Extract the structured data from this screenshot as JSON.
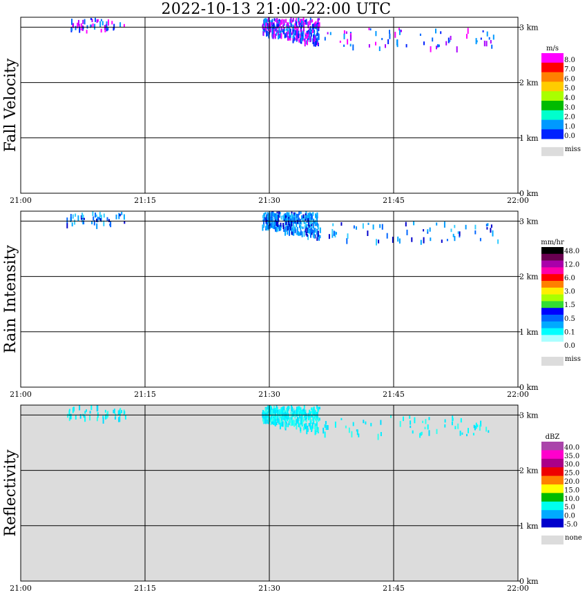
{
  "title": "2022-10-13  21:00-22:00 UTC",
  "x_ticks": [
    "21:00",
    "21:15",
    "21:30",
    "21:45",
    "22:00"
  ],
  "y_ticks": [
    "3 km",
    "2 km",
    "1 km",
    "0 km"
  ],
  "chart_data": [
    {
      "type": "heatmap",
      "ylabel": "Fall Velocity",
      "unit": "m/s",
      "background": "#ffffff",
      "colorbar": [
        {
          "color": "#ff00ff",
          "label": "8.0"
        },
        {
          "color": "#ff0000",
          "label": "7.0"
        },
        {
          "color": "#ff8000",
          "label": "6.0"
        },
        {
          "color": "#ffcc00",
          "label": "5.0"
        },
        {
          "color": "#aaff00",
          "label": "4.0"
        },
        {
          "color": "#00bb00",
          "label": "3.0"
        },
        {
          "color": "#00ffcc",
          "label": "2.0"
        },
        {
          "color": "#0099ff",
          "label": "1.0"
        },
        {
          "color": "#0022ff",
          "label": "0.0"
        }
      ],
      "miss_label": "miss",
      "echo_colors": [
        "#0099ff",
        "#0066ff",
        "#0022ff",
        "#ff00ff",
        "#aa00ff"
      ]
    },
    {
      "type": "heatmap",
      "ylabel": "Rain Intensity",
      "unit": "mm/hr",
      "background": "#ffffff",
      "colorbar": [
        {
          "color": "#000000",
          "label": "48.0"
        },
        {
          "color": "#6a0050",
          "label": ""
        },
        {
          "color": "#aa00aa",
          "label": "12.0"
        },
        {
          "color": "#ff00aa",
          "label": ""
        },
        {
          "color": "#ff0000",
          "label": "6.0"
        },
        {
          "color": "#ff8000",
          "label": ""
        },
        {
          "color": "#ffee00",
          "label": "3.0"
        },
        {
          "color": "#aaff00",
          "label": ""
        },
        {
          "color": "#33dd33",
          "label": "1.5"
        },
        {
          "color": "#0000ff",
          "label": ""
        },
        {
          "color": "#0066ff",
          "label": "0.5"
        },
        {
          "color": "#00aaff",
          "label": ""
        },
        {
          "color": "#00ffff",
          "label": "0.1"
        },
        {
          "color": "#aaffff",
          "label": ""
        },
        {
          "color": "#ffffff",
          "label": "0.0"
        }
      ],
      "miss_label": "miss",
      "echo_colors": [
        "#0099ff",
        "#0066ff",
        "#0000cc",
        "#00aaff",
        "#33ccff"
      ]
    },
    {
      "type": "heatmap",
      "ylabel": "Reflectivity",
      "unit": "dBZ",
      "background": "#dcdcdc",
      "colorbar": [
        {
          "color": "#aa44aa",
          "label": "40.0"
        },
        {
          "color": "#ff00cc",
          "label": "35.0"
        },
        {
          "color": "#aa0088",
          "label": "30.0"
        },
        {
          "color": "#ee0000",
          "label": "25.0"
        },
        {
          "color": "#ff8000",
          "label": "20.0"
        },
        {
          "color": "#ffff00",
          "label": "15.0"
        },
        {
          "color": "#00bb00",
          "label": "10.0"
        },
        {
          "color": "#00ffee",
          "label": "5.0"
        },
        {
          "color": "#00aaff",
          "label": "0.0"
        },
        {
          "color": "#0000cc",
          "label": "-5.0"
        }
      ],
      "miss_label": "none",
      "echo_colors": [
        "#00ffff",
        "#00eeff",
        "#33ffee",
        "#00ddff"
      ]
    }
  ]
}
